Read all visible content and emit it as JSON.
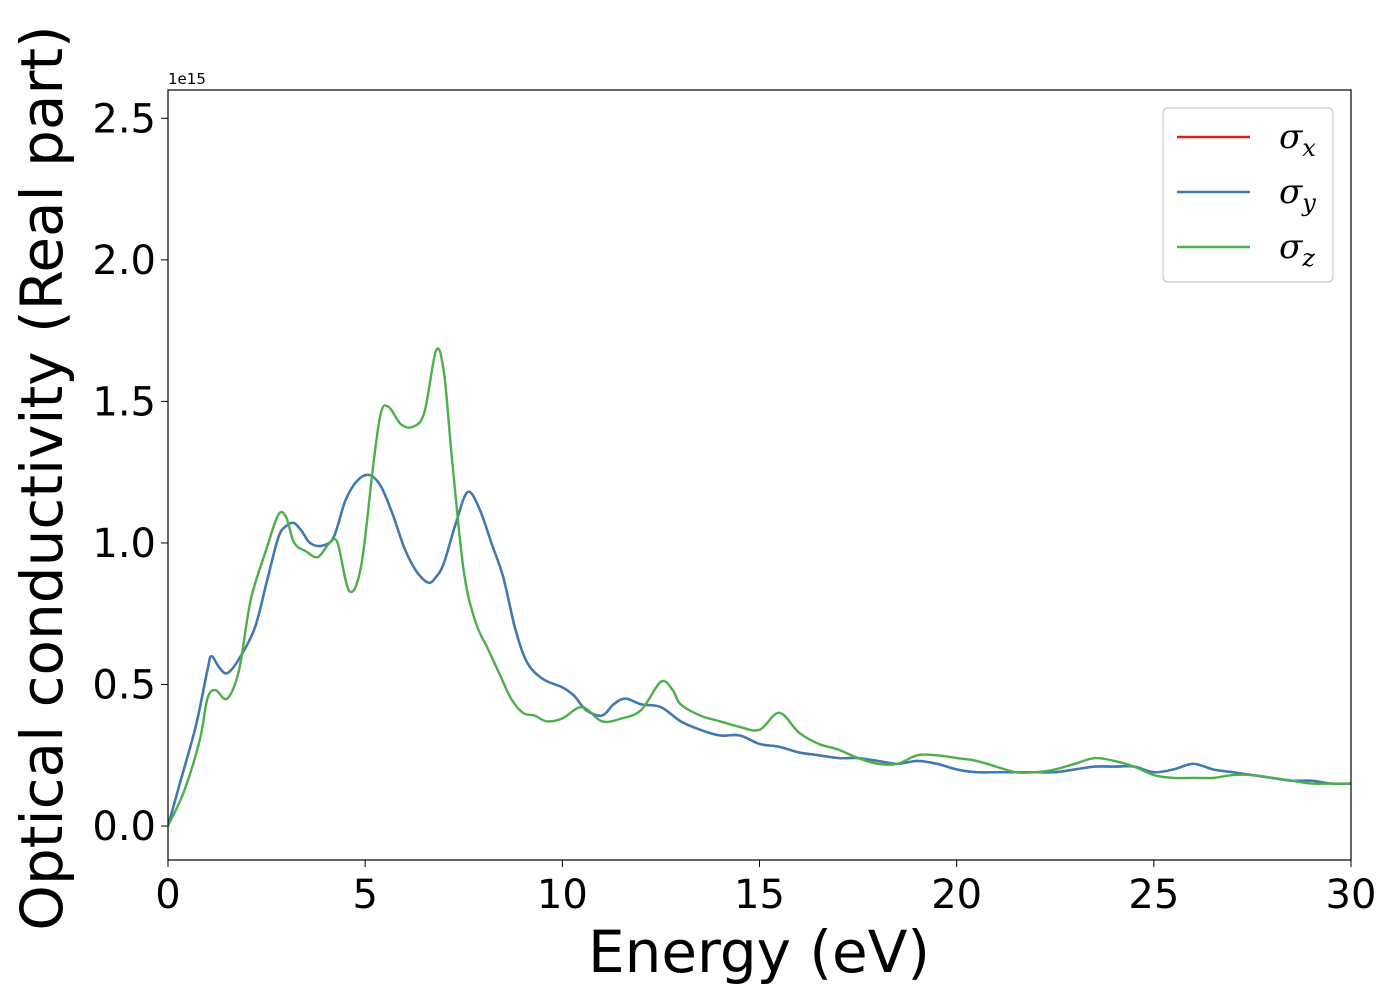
{
  "chart_data": {
    "type": "line",
    "xlabel": "Energy (eV)",
    "ylabel": "Optical conductivity (Real part)",
    "y_offset_text": "1e15",
    "xlim": [
      0,
      30
    ],
    "ylim": [
      -0.12,
      2.6
    ],
    "y_scale_factor": 1000000000000000.0,
    "grid": false,
    "legend_position": "top-right",
    "x_ticks": [
      0,
      5,
      10,
      15,
      20,
      25,
      30
    ],
    "x_tick_labels": [
      "0",
      "5",
      "10",
      "15",
      "20",
      "25",
      "30"
    ],
    "y_ticks": [
      0.0,
      0.5,
      1.0,
      1.5,
      2.0,
      2.5
    ],
    "y_tick_labels": [
      "0.0",
      "0.5",
      "1.0",
      "1.5",
      "2.0",
      "2.5"
    ],
    "colors": {
      "sigma_x": "#e41a1c",
      "sigma_y": "#377eb8",
      "sigma_z": "#4daf4a"
    },
    "series": [
      {
        "name": "σx",
        "symbol": "σ",
        "subscript": "x",
        "color": "#e41a1c",
        "x": [
          0,
          0.3,
          0.7,
          1.0,
          1.1,
          1.3,
          1.5,
          1.8,
          2.2,
          2.5,
          2.8,
          3.0,
          3.2,
          3.4,
          3.6,
          3.9,
          4.2,
          4.5,
          4.8,
          5.1,
          5.4,
          5.7,
          6.0,
          6.3,
          6.6,
          6.8,
          7.0,
          7.3,
          7.6,
          7.9,
          8.2,
          8.5,
          8.8,
          9.1,
          9.5,
          10.0,
          10.3,
          10.6,
          11.0,
          11.3,
          11.6,
          12.0,
          12.5,
          13.0,
          13.5,
          14.0,
          14.5,
          15.0,
          15.5,
          16.0,
          16.5,
          17.0,
          17.5,
          18.0,
          18.5,
          19.0,
          19.5,
          20.0,
          20.5,
          21.0,
          21.5,
          22.0,
          22.5,
          23.0,
          23.5,
          24.0,
          24.5,
          25.0,
          25.5,
          26.0,
          26.5,
          27.0,
          27.5,
          28.0,
          28.5,
          29.0,
          29.5,
          30.0
        ],
        "y": [
          0.0,
          0.15,
          0.35,
          0.55,
          0.6,
          0.56,
          0.54,
          0.59,
          0.7,
          0.86,
          1.02,
          1.06,
          1.07,
          1.04,
          1.0,
          0.99,
          1.02,
          1.15,
          1.22,
          1.24,
          1.2,
          1.1,
          0.98,
          0.9,
          0.86,
          0.88,
          0.93,
          1.07,
          1.18,
          1.12,
          1.0,
          0.88,
          0.7,
          0.58,
          0.52,
          0.49,
          0.46,
          0.41,
          0.39,
          0.43,
          0.45,
          0.43,
          0.42,
          0.37,
          0.34,
          0.32,
          0.32,
          0.29,
          0.28,
          0.26,
          0.25,
          0.24,
          0.24,
          0.23,
          0.22,
          0.23,
          0.22,
          0.2,
          0.19,
          0.19,
          0.19,
          0.19,
          0.19,
          0.2,
          0.21,
          0.21,
          0.21,
          0.19,
          0.2,
          0.22,
          0.2,
          0.19,
          0.18,
          0.17,
          0.16,
          0.16,
          0.15,
          0.15
        ]
      },
      {
        "name": "σy",
        "symbol": "σ",
        "subscript": "y",
        "color": "#377eb8",
        "x": [
          0,
          0.3,
          0.7,
          1.0,
          1.1,
          1.3,
          1.5,
          1.8,
          2.2,
          2.5,
          2.8,
          3.0,
          3.2,
          3.4,
          3.6,
          3.9,
          4.2,
          4.5,
          4.8,
          5.1,
          5.4,
          5.7,
          6.0,
          6.3,
          6.6,
          6.8,
          7.0,
          7.3,
          7.6,
          7.9,
          8.2,
          8.5,
          8.8,
          9.1,
          9.5,
          10.0,
          10.3,
          10.6,
          11.0,
          11.3,
          11.6,
          12.0,
          12.5,
          13.0,
          13.5,
          14.0,
          14.5,
          15.0,
          15.5,
          16.0,
          16.5,
          17.0,
          17.5,
          18.0,
          18.5,
          19.0,
          19.5,
          20.0,
          20.5,
          21.0,
          21.5,
          22.0,
          22.5,
          23.0,
          23.5,
          24.0,
          24.5,
          25.0,
          25.5,
          26.0,
          26.5,
          27.0,
          27.5,
          28.0,
          28.5,
          29.0,
          29.5,
          30.0
        ],
        "y": [
          0.0,
          0.15,
          0.35,
          0.55,
          0.6,
          0.56,
          0.54,
          0.59,
          0.7,
          0.86,
          1.02,
          1.06,
          1.07,
          1.04,
          1.0,
          0.99,
          1.02,
          1.15,
          1.22,
          1.24,
          1.2,
          1.1,
          0.98,
          0.9,
          0.86,
          0.88,
          0.93,
          1.07,
          1.18,
          1.12,
          1.0,
          0.88,
          0.7,
          0.58,
          0.52,
          0.49,
          0.46,
          0.41,
          0.39,
          0.43,
          0.45,
          0.43,
          0.42,
          0.37,
          0.34,
          0.32,
          0.32,
          0.29,
          0.28,
          0.26,
          0.25,
          0.24,
          0.24,
          0.23,
          0.22,
          0.23,
          0.22,
          0.2,
          0.19,
          0.19,
          0.19,
          0.19,
          0.19,
          0.2,
          0.21,
          0.21,
          0.21,
          0.19,
          0.2,
          0.22,
          0.2,
          0.19,
          0.18,
          0.17,
          0.16,
          0.16,
          0.15,
          0.15
        ]
      },
      {
        "name": "σz",
        "symbol": "σ",
        "subscript": "z",
        "color": "#4daf4a",
        "x": [
          0,
          0.4,
          0.8,
          1.0,
          1.2,
          1.5,
          1.8,
          2.1,
          2.5,
          2.8,
          3.0,
          3.2,
          3.5,
          3.8,
          4.1,
          4.3,
          4.6,
          4.9,
          5.2,
          5.4,
          5.6,
          5.9,
          6.2,
          6.5,
          6.8,
          7.0,
          7.2,
          7.5,
          7.8,
          8.1,
          8.4,
          8.7,
          9.0,
          9.3,
          9.6,
          10.0,
          10.5,
          11.0,
          11.5,
          12.0,
          12.5,
          12.8,
          13.0,
          13.5,
          14.0,
          14.5,
          15.0,
          15.5,
          16.0,
          16.5,
          17.0,
          17.5,
          18.0,
          18.5,
          19.0,
          19.5,
          20.0,
          20.5,
          21.0,
          21.5,
          22.0,
          22.5,
          23.0,
          23.5,
          24.0,
          24.5,
          25.0,
          25.5,
          26.0,
          26.5,
          27.0,
          27.5,
          28.0,
          28.5,
          29.0,
          29.5,
          30.0
        ],
        "y": [
          0.0,
          0.12,
          0.3,
          0.45,
          0.48,
          0.45,
          0.55,
          0.8,
          0.98,
          1.1,
          1.09,
          1.0,
          0.97,
          0.95,
          1.0,
          1.0,
          0.83,
          0.92,
          1.27,
          1.46,
          1.48,
          1.42,
          1.41,
          1.46,
          1.68,
          1.6,
          1.3,
          0.9,
          0.72,
          0.63,
          0.54,
          0.45,
          0.4,
          0.39,
          0.37,
          0.38,
          0.42,
          0.37,
          0.38,
          0.41,
          0.51,
          0.48,
          0.43,
          0.39,
          0.37,
          0.35,
          0.34,
          0.4,
          0.33,
          0.29,
          0.27,
          0.24,
          0.22,
          0.22,
          0.25,
          0.25,
          0.24,
          0.23,
          0.21,
          0.19,
          0.19,
          0.2,
          0.22,
          0.24,
          0.23,
          0.21,
          0.18,
          0.17,
          0.17,
          0.17,
          0.18,
          0.18,
          0.17,
          0.16,
          0.15,
          0.15,
          0.15
        ]
      }
    ]
  }
}
